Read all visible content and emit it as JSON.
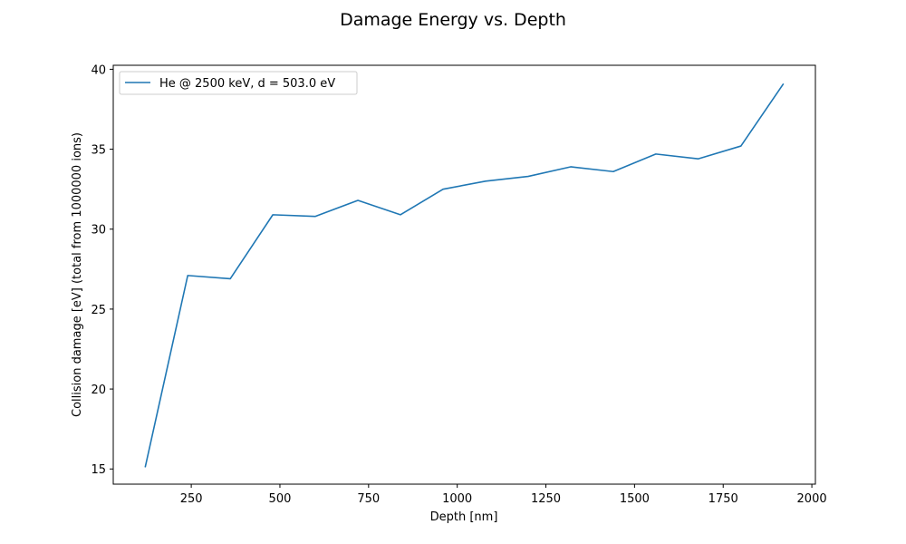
{
  "chart_data": {
    "type": "line",
    "title": "Damage Energy vs. Depth",
    "xlabel": "Depth [nm]",
    "ylabel": "Collision damage [eV] (total from 1000000 ions)",
    "xlim": [
      30,
      2010
    ],
    "ylim": [
      14.05,
      40.25
    ],
    "xticks": [
      250,
      500,
      750,
      1000,
      1250,
      1500,
      1750,
      2000
    ],
    "yticks": [
      15,
      20,
      25,
      30,
      35,
      40
    ],
    "grid": false,
    "legend_position": "top-left",
    "series": [
      {
        "name": "He @  2500 keV, d = 503.0 eV",
        "color": "#1f77b4",
        "x": [
          120,
          240,
          360,
          480,
          600,
          720,
          840,
          960,
          1080,
          1200,
          1320,
          1440,
          1560,
          1680,
          1800,
          1920
        ],
        "y": [
          15.1,
          27.1,
          26.9,
          30.9,
          30.8,
          31.8,
          30.9,
          32.5,
          33.0,
          33.3,
          33.9,
          33.6,
          34.7,
          34.4,
          35.2,
          39.1
        ]
      }
    ]
  }
}
